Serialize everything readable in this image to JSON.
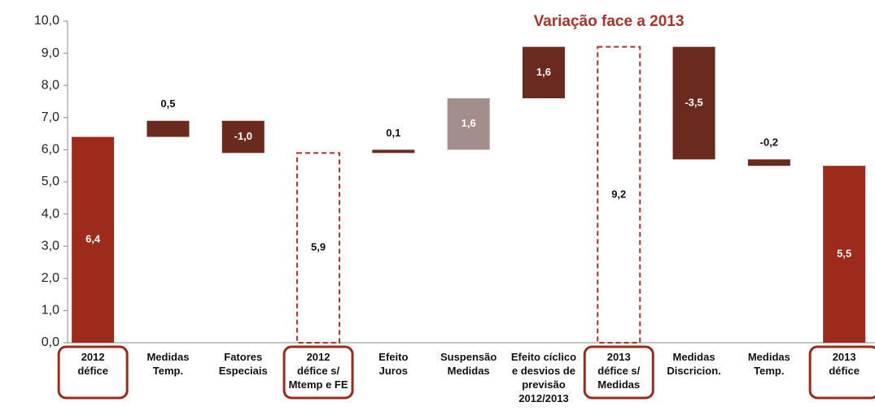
{
  "chart_data": {
    "type": "waterfall",
    "title": "Variação face a 2013",
    "categories": [
      [
        "2012",
        "défice"
      ],
      [
        "Medidas",
        "Temp."
      ],
      [
        "Fatores",
        "Especiais"
      ],
      [
        "2012",
        "défice s/",
        "Mtemp e FE"
      ],
      [
        "Efeito",
        "Juros"
      ],
      [
        "Suspensão",
        "Medidas"
      ],
      [
        "Efeito cíclico",
        "e desvios de",
        "previsão",
        "2012/2013"
      ],
      [
        "2013",
        "défice s/",
        "Medidas"
      ],
      [
        "Medidas",
        "Discricion."
      ],
      [
        "Medidas",
        "Temp."
      ],
      [
        "2013",
        "défice"
      ]
    ],
    "values": [
      6.4,
      0.5,
      -1.0,
      5.9,
      0.1,
      1.6,
      1.6,
      9.2,
      -3.5,
      -0.2,
      5.5
    ],
    "value_labels": [
      "6,4",
      "0,5",
      "-1,0",
      "5,9",
      "0,1",
      "1,6",
      "1,6",
      "9,2",
      "-3,5",
      "-0,2",
      "5,5"
    ],
    "kinds": [
      "total",
      "delta",
      "delta",
      "total",
      "delta",
      "delta",
      "delta",
      "total",
      "delta",
      "delta",
      "total"
    ],
    "colors": [
      "#9c2b1c",
      "#6b2a1e",
      "#6b2a1e",
      "#a8342a",
      "#6b2a1e",
      "#a38e8c",
      "#6b2a1e",
      "#a8342a",
      "#6b2a1e",
      "#6b2a1e",
      "#9c2b1c"
    ],
    "dashed": [
      false,
      false,
      false,
      true,
      false,
      false,
      false,
      true,
      false,
      false,
      false
    ],
    "highlighted": [
      true,
      false,
      false,
      true,
      false,
      false,
      false,
      true,
      false,
      false,
      true
    ],
    "ylim": [
      0,
      10
    ],
    "yticks": [
      {
        "value": 0,
        "label": "0,0"
      },
      {
        "value": 1,
        "label": "1,0"
      },
      {
        "value": 2,
        "label": "2,0"
      },
      {
        "value": 3,
        "label": "3,0"
      },
      {
        "value": 4,
        "label": "4,0"
      },
      {
        "value": 5,
        "label": "5,0"
      },
      {
        "value": 6,
        "label": "6,0"
      },
      {
        "value": 7,
        "label": "7,0"
      },
      {
        "value": 8,
        "label": "8,0"
      },
      {
        "value": 9,
        "label": "9,0"
      },
      {
        "value": 10,
        "label": "10,0"
      }
    ]
  }
}
